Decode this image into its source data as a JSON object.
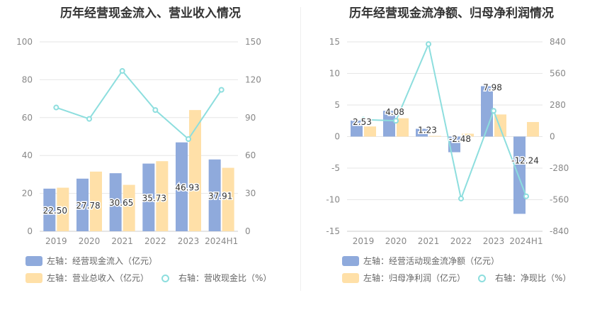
{
  "colors": {
    "bar_primary": "#8faadc",
    "bar_secondary": "#ffe0a8",
    "line": "#8ddede",
    "grid": "#e6e6e6",
    "axis_text": "#888888"
  },
  "chart_data": [
    {
      "type": "bar",
      "title": "历年经营现金流入、营业收入情况",
      "categories": [
        "2019",
        "2020",
        "2021",
        "2022",
        "2023",
        "2024H1"
      ],
      "left_axis": {
        "ylim": [
          0,
          100
        ],
        "ticks": [
          0,
          20,
          40,
          60,
          80,
          100
        ]
      },
      "right_axis": {
        "ylim": [
          0,
          150
        ],
        "ticks": [
          0,
          30,
          60,
          90,
          120,
          150
        ]
      },
      "series": [
        {
          "name": "左轴：经营现金流入（亿元）",
          "type": "bar",
          "axis": "left",
          "values": [
            22.5,
            27.78,
            30.65,
            35.73,
            46.93,
            37.91
          ],
          "labels": [
            "22.50",
            "27.78",
            "30.65",
            "35.73",
            "46.93",
            "37.91"
          ]
        },
        {
          "name": "左轴：营业总收入（亿元）",
          "type": "bar",
          "axis": "left",
          "values": [
            23,
            31.5,
            24.5,
            37,
            64,
            33.5
          ]
        },
        {
          "name": "右轴：营收现金比（%）",
          "type": "line",
          "axis": "right",
          "values": [
            98,
            89,
            127,
            96,
            73,
            112
          ]
        }
      ]
    },
    {
      "type": "bar",
      "title": "历年经营现金流净额、归母净利润情况",
      "categories": [
        "2019",
        "2020",
        "2021",
        "2022",
        "2023",
        "2024H1"
      ],
      "left_axis": {
        "ylim": [
          -15,
          15
        ],
        "ticks": [
          -15,
          -10,
          -5,
          0,
          5,
          10,
          15
        ]
      },
      "right_axis": {
        "ylim": [
          -840,
          840
        ],
        "ticks": [
          -840,
          -560,
          -280,
          0,
          280,
          560,
          840
        ]
      },
      "series": [
        {
          "name": "左轴：经营活动现金流净额（亿元）",
          "type": "bar",
          "axis": "left",
          "values": [
            2.53,
            4.08,
            1.23,
            -2.48,
            7.98,
            -12.24
          ],
          "labels": [
            "2.53",
            "4.08",
            "1.23",
            "-2.48",
            "7.98",
            "-12.24"
          ]
        },
        {
          "name": "左轴：归母净利润（亿元）",
          "type": "bar",
          "axis": "left",
          "values": [
            1.6,
            2.9,
            0.1,
            0.45,
            3.5,
            2.3
          ]
        },
        {
          "name": "右轴：净现比（%）",
          "type": "line",
          "axis": "right",
          "values": [
            150,
            140,
            820,
            -550,
            228,
            -530
          ]
        }
      ]
    }
  ]
}
